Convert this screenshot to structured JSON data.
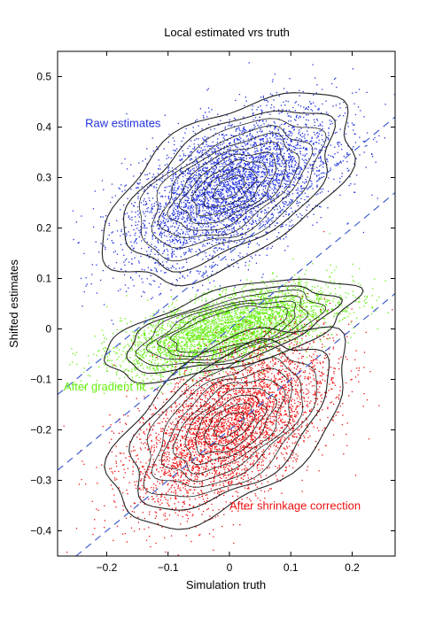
{
  "chart_data": {
    "type": "scatter",
    "title": "Local estimated vrs truth",
    "xlabel": "Simulation truth",
    "ylabel": "Shifted estimates",
    "xlim": [
      -0.28,
      0.27
    ],
    "ylim": [
      -0.45,
      0.55
    ],
    "xticks": [
      -0.2,
      -0.1,
      0,
      0.1,
      0.2
    ],
    "xtick_labels": [
      "−0.2",
      "−0.1",
      "0",
      "0.1",
      "0.2"
    ],
    "yticks": [
      0.5,
      0.4,
      0.3,
      0.2,
      0.1,
      0,
      -0.1,
      -0.2,
      -0.3,
      -0.4
    ],
    "ytick_labels": [
      "0.5",
      "0.4",
      "0.3",
      "0.2",
      "0.1",
      "0",
      "−0.1",
      "−0.2",
      "−0.3",
      "−0.4"
    ],
    "grid": false,
    "series": [
      {
        "name": "Raw estimates",
        "color": "#2233dd",
        "center": [
          0.0,
          0.28
        ],
        "spread": [
          0.085,
          0.065
        ],
        "slope": 0.5,
        "label_position": [
          -0.235,
          0.4
        ]
      },
      {
        "name": "After gradient fit",
        "color": "#66ee11",
        "center": [
          0.0,
          0.0
        ],
        "spread": [
          0.085,
          0.033
        ],
        "slope": 0.3,
        "label_position": [
          -0.27,
          -0.122
        ]
      },
      {
        "name": "After shrinkage correction",
        "color": "#ee1111",
        "center": [
          0.0,
          -0.19
        ],
        "spread": [
          0.08,
          0.07
        ],
        "slope": 0.55,
        "label_position": [
          0.0,
          -0.358
        ]
      }
    ],
    "reference_lines": {
      "style": "dashed",
      "color": "#3355cc",
      "slope": 1.0,
      "intercepts": [
        0.15,
        0.0,
        -0.2
      ]
    }
  }
}
